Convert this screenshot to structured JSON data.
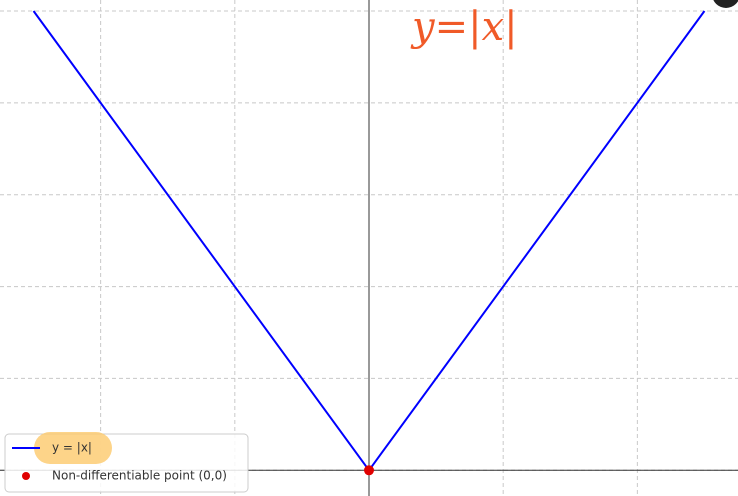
{
  "chart_data": {
    "type": "line",
    "annotation": "y=|x|",
    "xlim": [
      -2.75,
      2.75
    ],
    "ylim": [
      -0.14,
      2.56
    ],
    "xticks": [
      -2,
      -1,
      0,
      1,
      2
    ],
    "yticks": [
      0,
      0.5,
      1,
      1.5,
      2,
      2.5
    ],
    "grid": true,
    "legend": "lower left",
    "series": [
      {
        "name": "y = |x|",
        "color": "#0000ff",
        "type": "line",
        "x": [
          -2.5,
          0,
          2.5
        ],
        "values": [
          2.5,
          0,
          2.5
        ]
      },
      {
        "name": "Non-differentiable point (0,0)",
        "color": "#e00000",
        "type": "scatter",
        "x": [
          0
        ],
        "values": [
          0
        ]
      }
    ]
  }
}
